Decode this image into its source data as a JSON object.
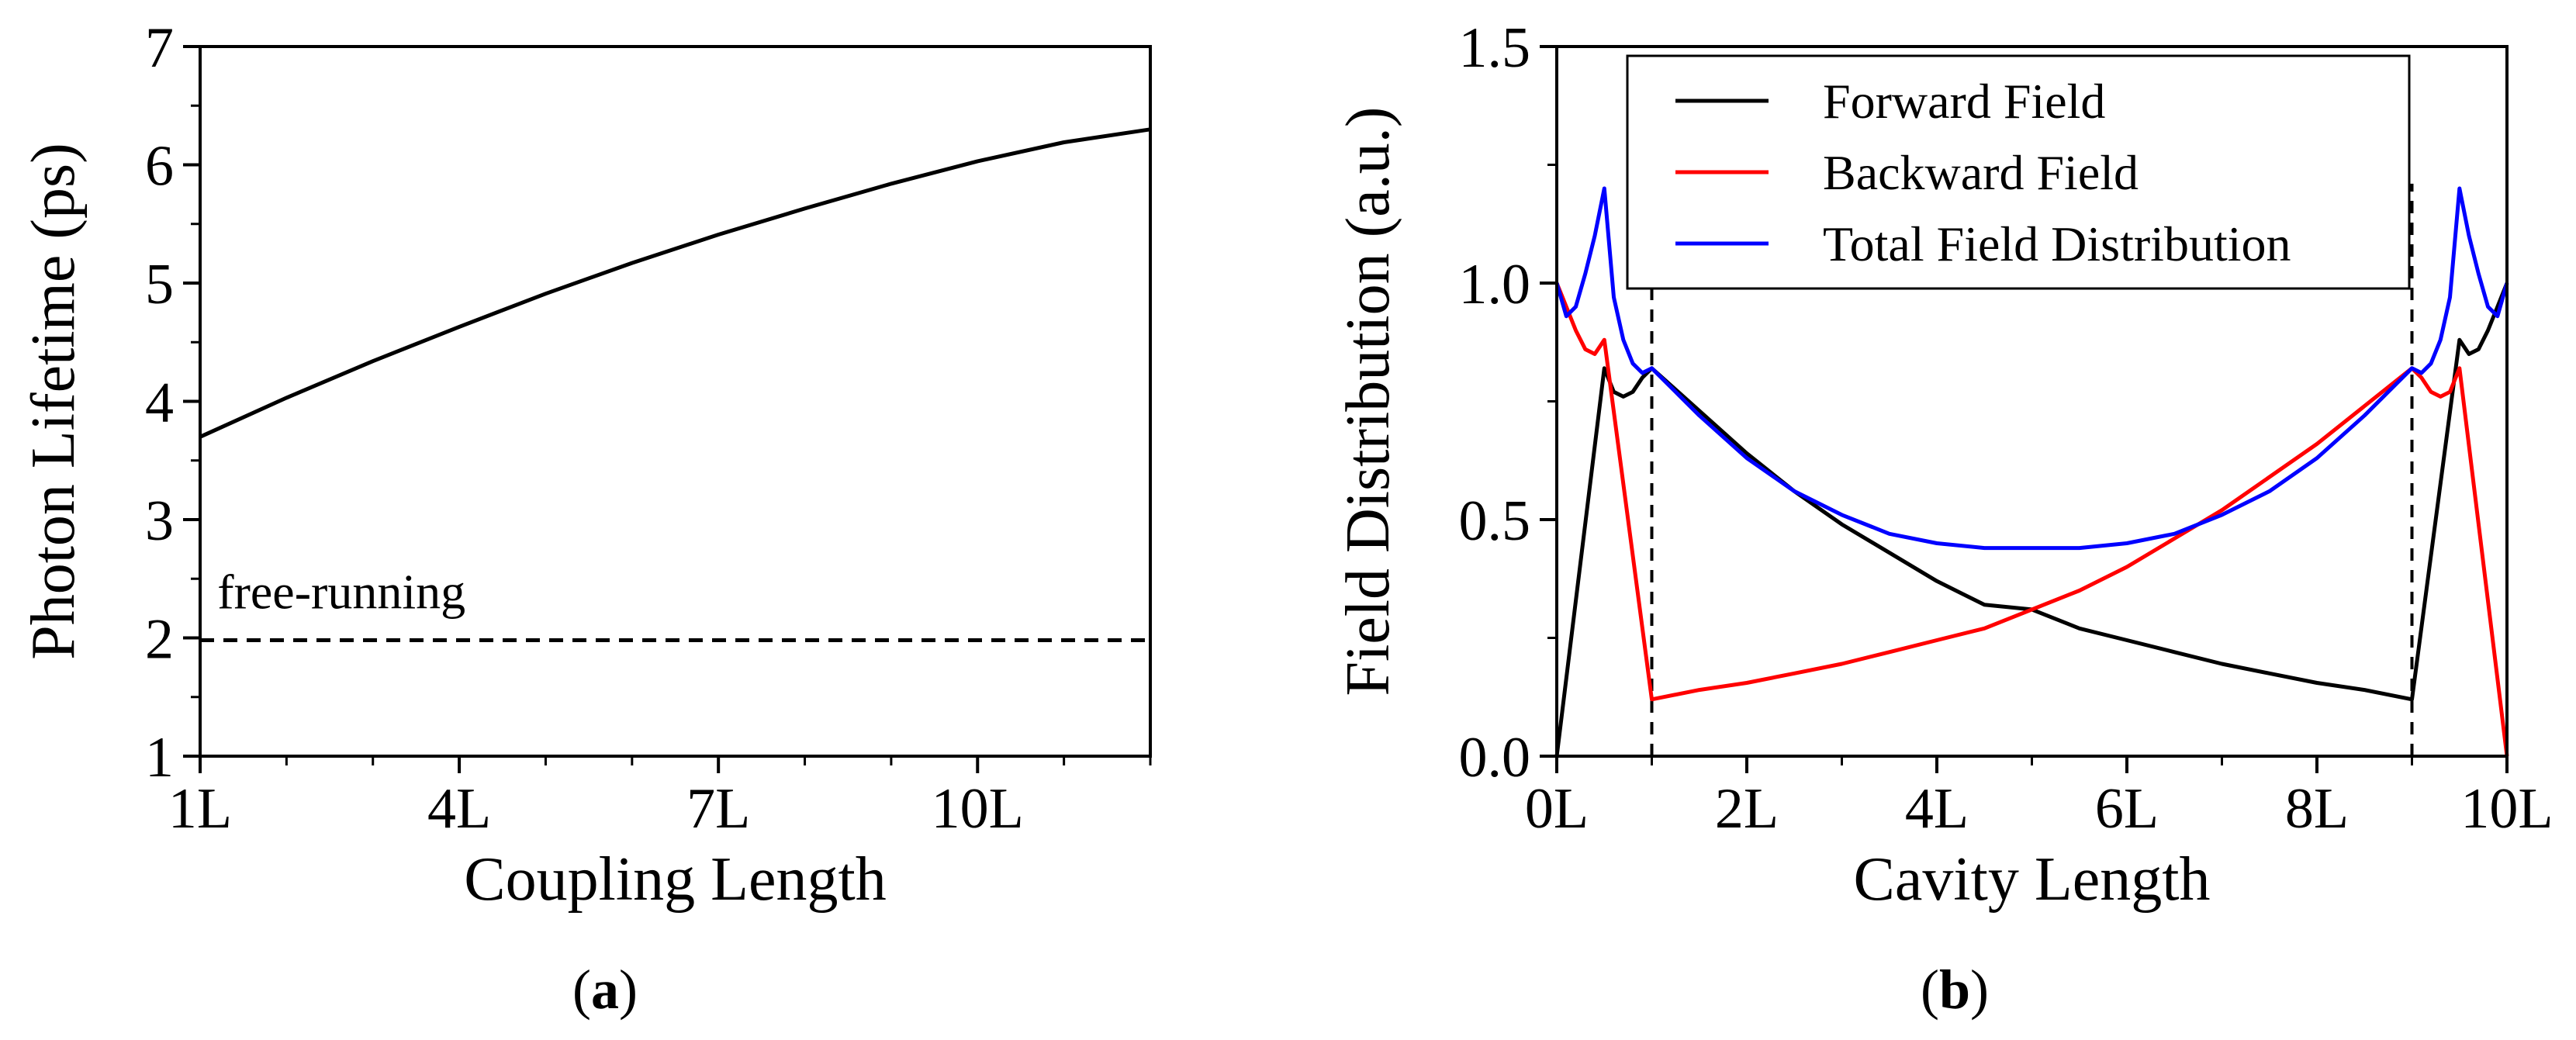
{
  "chart_data": [
    {
      "panel": "(a)",
      "panel_label": "a",
      "type": "line",
      "xlabel": "Coupling Length",
      "ylabel": "Photon Lifetime (ps)",
      "xlim": [
        1,
        12
      ],
      "ylim": [
        1,
        7
      ],
      "xticks": [
        1,
        4,
        7,
        10
      ],
      "xtick_labels": [
        "1L",
        "4L",
        "7L",
        "10L"
      ],
      "yticks": [
        1,
        2,
        3,
        4,
        5,
        6,
        7
      ],
      "ytick_labels": [
        "1",
        "2",
        "3",
        "4",
        "5",
        "6",
        "7"
      ],
      "series": [
        {
          "name": "photon lifetime",
          "color": "#000000",
          "style": "solid",
          "x": [
            1,
            2,
            3,
            4,
            5,
            6,
            7,
            8,
            9,
            10,
            11,
            12
          ],
          "y": [
            3.7,
            4.03,
            4.34,
            4.63,
            4.91,
            5.17,
            5.41,
            5.63,
            5.84,
            6.03,
            6.19,
            6.3
          ]
        },
        {
          "name": "free-running",
          "color": "#000000",
          "style": "dashed",
          "x": [
            1,
            12
          ],
          "y": [
            1.98,
            1.98
          ]
        }
      ],
      "annotations": [
        {
          "text": "free-running",
          "x": 1.2,
          "y": 2.25
        }
      ]
    },
    {
      "panel": "(b)",
      "panel_label": "b",
      "type": "line",
      "xlabel": "Cavity Length",
      "ylabel": "Field Distribution (a.u.)",
      "xlim": [
        0,
        10
      ],
      "ylim": [
        0,
        1.5
      ],
      "xticks": [
        0,
        2,
        4,
        6,
        8,
        10
      ],
      "xtick_labels": [
        "0L",
        "2L",
        "4L",
        "6L",
        "8L",
        "10L"
      ],
      "yticks": [
        0,
        0.5,
        1.0,
        1.5
      ],
      "ytick_labels": [
        "0.0",
        "0.5",
        "1.0",
        "1.5"
      ],
      "legend_position": "top-right",
      "vlines": [
        1,
        9
      ],
      "series": [
        {
          "name": "Forward Field",
          "color": "#000000",
          "x": [
            0,
            0.5,
            0.6,
            0.7,
            0.8,
            0.9,
            1.0,
            1.5,
            2.0,
            2.5,
            3.0,
            3.5,
            4.0,
            4.5,
            5.0,
            5.5,
            6.0,
            6.5,
            7.0,
            7.5,
            8.0,
            8.5,
            9.0,
            9.5,
            9.6,
            9.7,
            9.8,
            9.9,
            10.0
          ],
          "y": [
            0.0,
            0.82,
            0.77,
            0.76,
            0.77,
            0.8,
            0.82,
            0.73,
            0.64,
            0.56,
            0.49,
            0.43,
            0.37,
            0.32,
            0.31,
            0.27,
            0.245,
            0.22,
            0.195,
            0.175,
            0.155,
            0.14,
            0.12,
            0.88,
            0.85,
            0.86,
            0.9,
            0.95,
            1.0
          ]
        },
        {
          "name": "Backward Field",
          "color": "#ff0000",
          "x": [
            0,
            0.1,
            0.2,
            0.3,
            0.4,
            0.5,
            1.0,
            1.5,
            2.0,
            2.5,
            3.0,
            3.5,
            4.0,
            4.5,
            5.0,
            5.5,
            6.0,
            6.5,
            7.0,
            7.5,
            8.0,
            8.5,
            9.0,
            9.1,
            9.2,
            9.3,
            9.4,
            9.5,
            10.0
          ],
          "y": [
            1.0,
            0.95,
            0.9,
            0.86,
            0.85,
            0.88,
            0.12,
            0.14,
            0.155,
            0.175,
            0.195,
            0.22,
            0.245,
            0.27,
            0.31,
            0.35,
            0.4,
            0.46,
            0.52,
            0.59,
            0.66,
            0.74,
            0.82,
            0.8,
            0.77,
            0.76,
            0.77,
            0.82,
            0.0
          ]
        },
        {
          "name": "Total Field Distribution",
          "color": "#0000ff",
          "x": [
            0,
            0.1,
            0.2,
            0.3,
            0.4,
            0.5,
            0.6,
            0.7,
            0.8,
            0.9,
            1.0,
            1.5,
            2.0,
            2.5,
            3.0,
            3.5,
            4.0,
            4.5,
            5.0,
            5.5,
            6.0,
            6.5,
            7.0,
            7.5,
            8.0,
            8.5,
            9.0,
            9.1,
            9.2,
            9.3,
            9.4,
            9.5,
            9.6,
            9.7,
            9.8,
            9.9,
            10.0
          ],
          "y": [
            1.0,
            0.93,
            0.95,
            1.02,
            1.1,
            1.2,
            0.97,
            0.88,
            0.83,
            0.81,
            0.82,
            0.72,
            0.63,
            0.56,
            0.51,
            0.47,
            0.45,
            0.44,
            0.44,
            0.44,
            0.45,
            0.47,
            0.51,
            0.56,
            0.63,
            0.72,
            0.82,
            0.81,
            0.83,
            0.88,
            0.97,
            1.2,
            1.1,
            1.02,
            0.95,
            0.93,
            1.0
          ]
        }
      ]
    }
  ]
}
